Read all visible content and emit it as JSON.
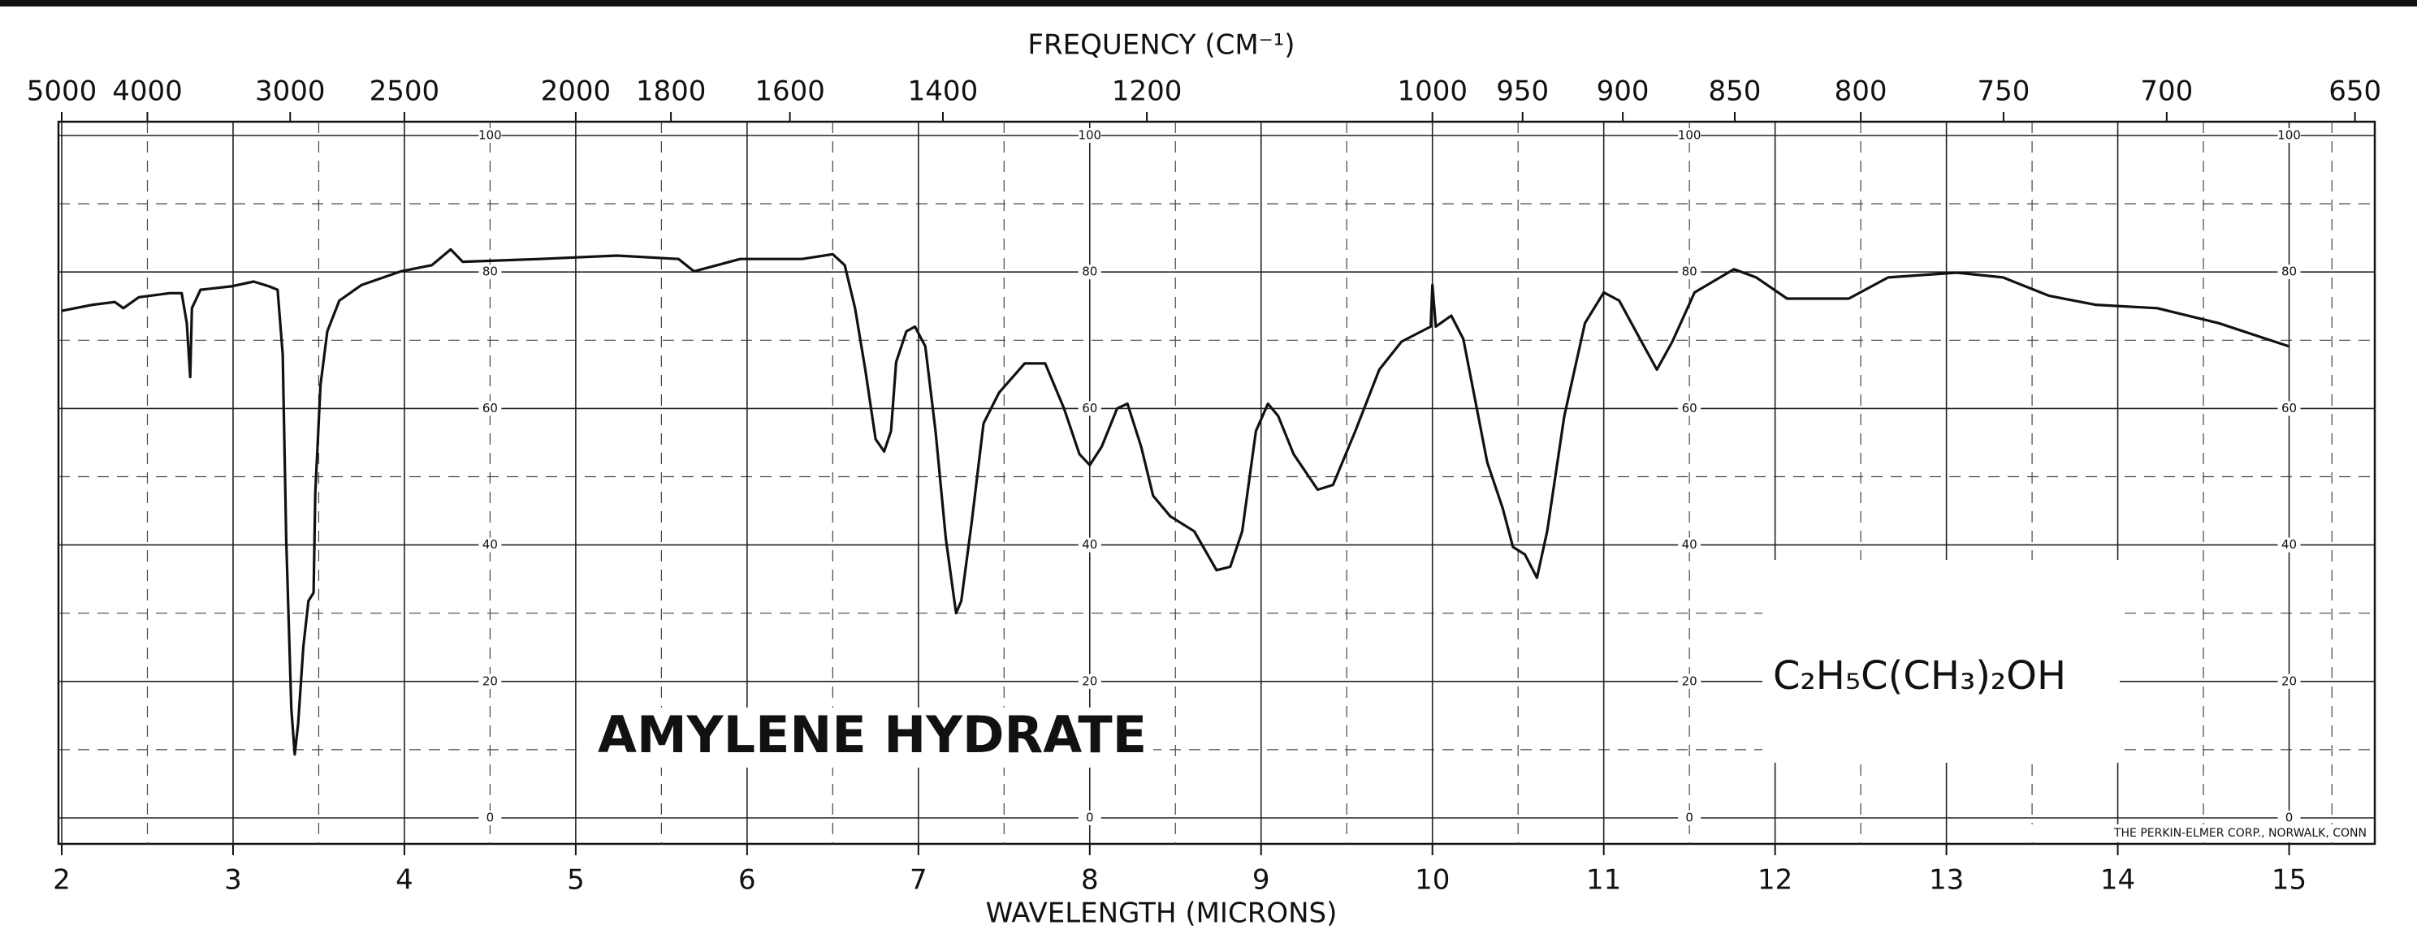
{
  "chart_data": {
    "type": "line",
    "title": "FREQUENCY (CM⁻¹)",
    "x_label": "WAVELENGTH (MICRONS)",
    "annotations": [
      "AMYLENE HYDRATE",
      "C₂H₅C(CH₃)₂OH",
      "THE PERKIN-ELMER CORP., NORWALK, CONN"
    ],
    "xlim": [
      2,
      15.5
    ],
    "xticks": [
      2,
      3,
      4,
      5,
      6,
      7,
      8,
      9,
      10,
      11,
      12,
      13,
      14,
      15
    ],
    "frequency_ticks": [
      5000,
      4000,
      3000,
      2500,
      2000,
      1800,
      1600,
      1400,
      1200,
      1000,
      950,
      900,
      850,
      800,
      750,
      700,
      650
    ],
    "ylim": [
      0,
      100
    ],
    "yticks": [
      0,
      20,
      40,
      60,
      80,
      100
    ],
    "grid": true,
    "series": [
      {
        "color": "#111111",
        "x": [
          2.0,
          2.18,
          2.31,
          2.36,
          2.45,
          2.63,
          2.7,
          2.73,
          2.75,
          2.76,
          2.81,
          2.99,
          3.12,
          3.21,
          3.26,
          3.29,
          3.31,
          3.34,
          3.36,
          3.38,
          3.41,
          3.44,
          3.47,
          3.48,
          3.51,
          3.55,
          3.62,
          3.75,
          3.98,
          4.16,
          4.27,
          4.34,
          4.79,
          5.24,
          5.6,
          5.69,
          5.96,
          6.32,
          6.5,
          6.57,
          6.63,
          6.69,
          6.75,
          6.8,
          6.84,
          6.87,
          6.93,
          6.98,
          7.04,
          7.1,
          7.16,
          7.22,
          7.25,
          7.31,
          7.38,
          7.47,
          7.62,
          7.74,
          7.85,
          7.94,
          8.0,
          8.07,
          8.16,
          8.22,
          8.3,
          8.37,
          8.47,
          8.61,
          8.74,
          8.82,
          8.89,
          8.97,
          9.04,
          9.1,
          9.19,
          9.33,
          9.42,
          9.55,
          9.69,
          9.82,
          9.99,
          10.0,
          10.02,
          10.11,
          10.18,
          10.25,
          10.32,
          10.41,
          10.47,
          10.54,
          10.61,
          10.67,
          10.77,
          10.89,
          11.0,
          11.09,
          11.22,
          11.31,
          11.4,
          11.53,
          11.76,
          11.89,
          12.07,
          12.43,
          12.66,
          13.06,
          13.33,
          13.6,
          13.87,
          14.23,
          14.59,
          15.0
        ],
        "values": [
          74.3,
          75.2,
          75.6,
          74.7,
          76.3,
          76.9,
          76.9,
          72.5,
          64.6,
          74.7,
          77.4,
          77.9,
          78.6,
          77.9,
          77.4,
          67.9,
          40.9,
          16.0,
          9.3,
          13.8,
          25.1,
          31.8,
          33.0,
          47.6,
          63.4,
          71.3,
          75.8,
          78.1,
          80.1,
          81.0,
          83.3,
          81.5,
          81.9,
          82.4,
          81.9,
          80.1,
          81.9,
          81.9,
          82.6,
          81.0,
          74.7,
          65.7,
          55.5,
          53.7,
          56.7,
          66.8,
          71.3,
          72.0,
          69.1,
          56.7,
          40.9,
          30.0,
          31.8,
          43.1,
          57.8,
          62.3,
          66.6,
          66.6,
          60.0,
          53.3,
          51.7,
          54.4,
          60.0,
          60.7,
          54.4,
          47.2,
          44.2,
          42.0,
          36.3,
          36.8,
          42.0,
          56.7,
          60.7,
          58.9,
          53.3,
          48.1,
          48.8,
          56.7,
          65.7,
          69.8,
          72.0,
          78.1,
          72.0,
          73.6,
          70.2,
          61.2,
          52.1,
          45.4,
          39.7,
          38.6,
          35.2,
          42.0,
          58.9,
          72.5,
          77.0,
          75.8,
          69.8,
          65.7,
          69.8,
          77.0,
          80.4,
          79.2,
          76.1,
          76.1,
          79.2,
          79.9,
          79.2,
          76.5,
          75.2,
          74.7,
          72.5,
          69.1
        ]
      }
    ]
  }
}
